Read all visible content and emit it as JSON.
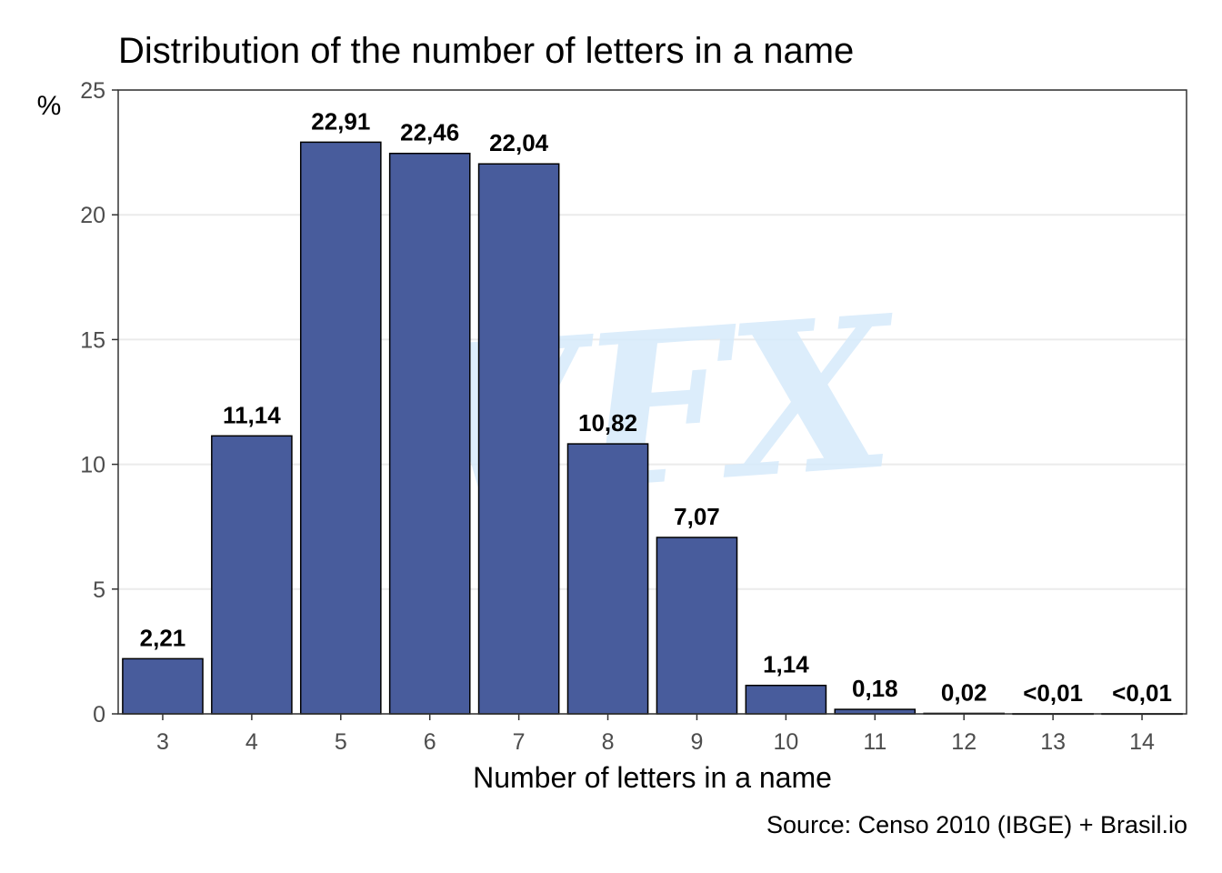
{
  "colors": {
    "bar_fill": "#485C9C",
    "bar_stroke": "#000000",
    "grid": "#EBEBEB",
    "axis_text": "#4D4D4D",
    "watermark": "#D6EAFB"
  },
  "watermark_text": "VFX",
  "chart_data": {
    "type": "bar",
    "title": "Distribution of the number of letters in a name",
    "xlabel": "Number of letters in a name",
    "ylabel": "%",
    "caption": "Source: Censo 2010 (IBGE) + Brasil.io",
    "categories": [
      "3",
      "4",
      "5",
      "6",
      "7",
      "8",
      "9",
      "10",
      "11",
      "12",
      "13",
      "14"
    ],
    "values": [
      2.21,
      11.14,
      22.91,
      22.46,
      22.04,
      10.82,
      7.07,
      1.14,
      0.18,
      0.02,
      0.005,
      0.005
    ],
    "data_labels": [
      "2,21",
      "11,14",
      "22,91",
      "22,46",
      "22,04",
      "10,82",
      "7,07",
      "1,14",
      "0,18",
      "0,02",
      "<0,01",
      "<0,01"
    ],
    "ylim": [
      0,
      25
    ],
    "yticks": [
      "0",
      "5",
      "10",
      "15",
      "20",
      "25"
    ],
    "grid": true,
    "legend": "none"
  }
}
